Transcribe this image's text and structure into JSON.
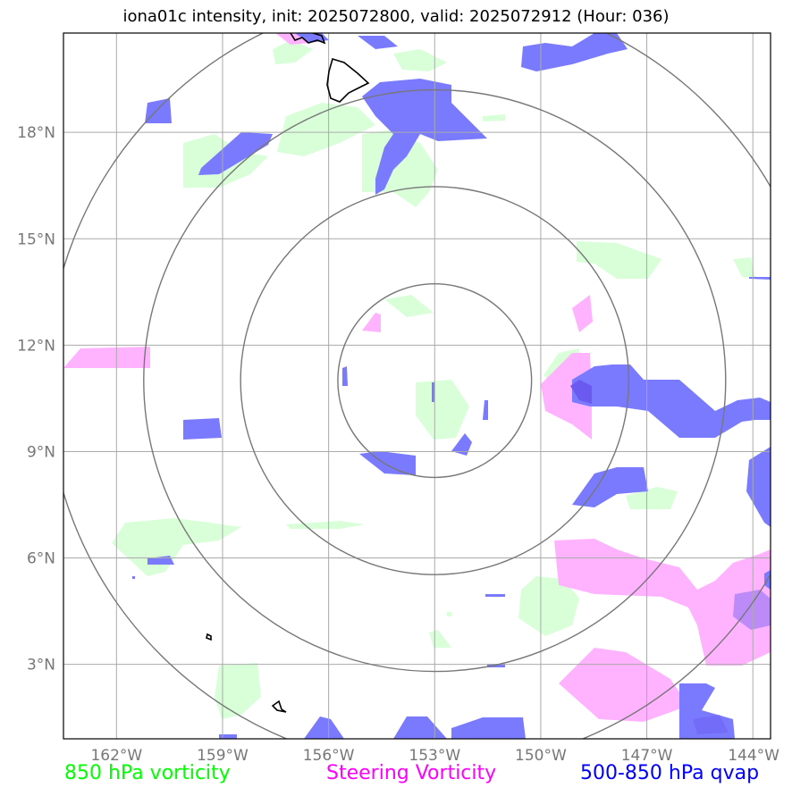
{
  "title": "iona01c intensity, init: 2025072800, valid: 2025072912 (Hour: 036)",
  "lat_labels": [
    "18°N",
    "15°N",
    "12°N",
    "9°N",
    "6°N",
    "3°N"
  ],
  "lon_labels": [
    "162°W",
    "159°W",
    "156°W",
    "153°W",
    "150°W",
    "147°W",
    "144°W"
  ],
  "legend": [
    {
      "label": "850 hPa vorticity",
      "color": "#00ff00"
    },
    {
      "label": "Steering Vorticity",
      "color": "#ff00ff"
    },
    {
      "label": "500-850 hPa qvap",
      "color": "#0000ff"
    }
  ],
  "map_extent": {
    "lon_min": -163.5,
    "lon_max": -143.5,
    "lat_min": 0.9,
    "lat_max": 20.8
  },
  "storm_center": {
    "lon": -153,
    "lat": 11.0
  },
  "fill_colors": {
    "vorticity_850": "#d9ffd9",
    "steering_vorticity": "#ffb3ff",
    "qvap": "#7a7aff",
    "overlap": "#6a5aef"
  },
  "grid_color": "#aaaaaa",
  "ring_color": "#777777",
  "coastline_color": "#000000"
}
